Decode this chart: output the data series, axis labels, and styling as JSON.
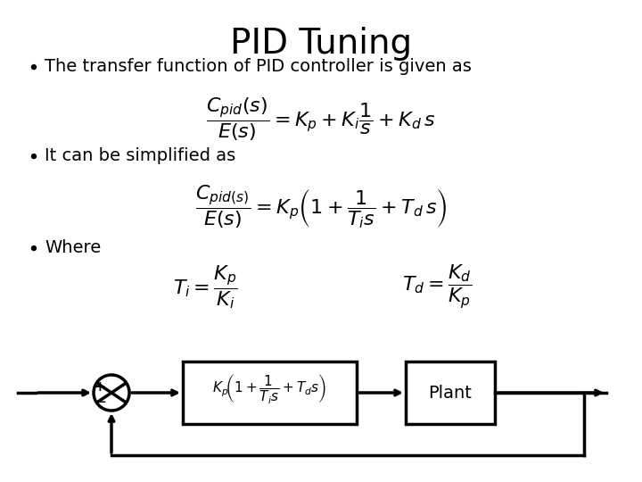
{
  "title": "PID Tuning",
  "title_fontsize": 28,
  "background_color": "#ffffff",
  "text_color": "#000000",
  "bullet1": "The transfer function of PID controller is given as",
  "eq1": "\\frac{C_{pid}(s)}{E(s)} = K_p + K_i\\frac{1}{s} + K_d\\, s",
  "bullet2": "It can be simplified as",
  "eq2": "\\frac{C_{pid(s)}}{E(s)} = K_p\\left(1 + \\frac{1}{T_i s} + T_d\\, s\\right)",
  "bullet3": "Where",
  "eq3a": "T_i = \\dfrac{K_p}{K_i}",
  "eq3b": "T_d = \\dfrac{K_d}{K_p}",
  "block_eq": "K_p\\left(1 + \\dfrac{1}{T_i s} + T_d s\\right)",
  "block_plant": "Plant"
}
